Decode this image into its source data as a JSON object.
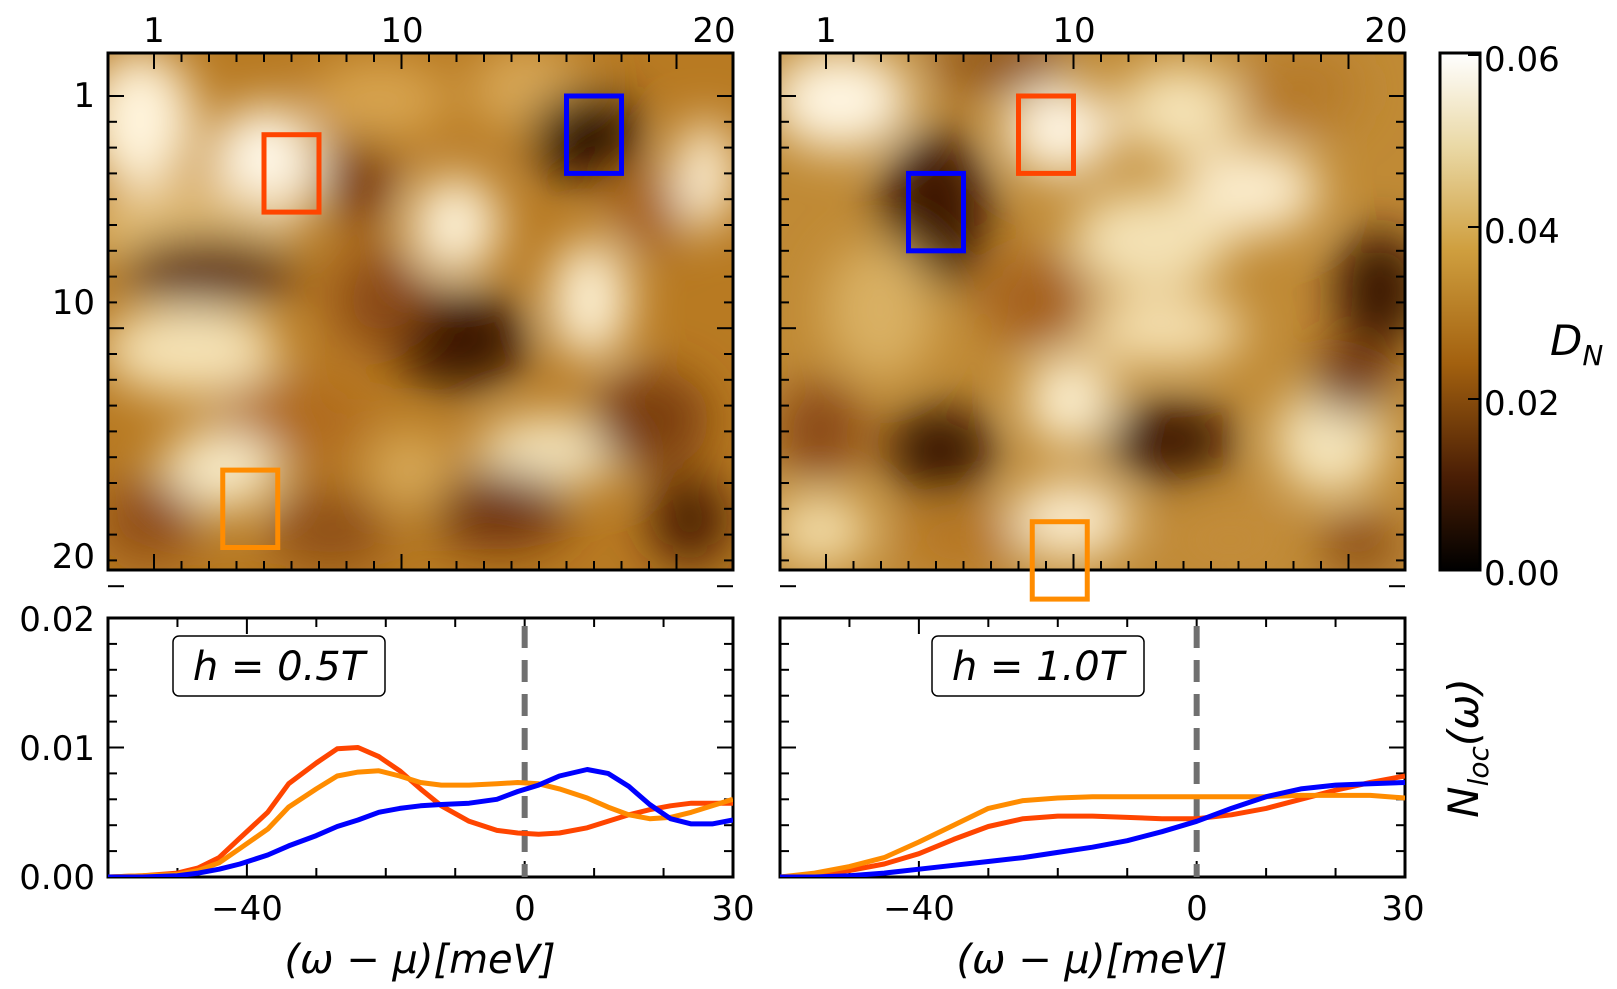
{
  "chart_data": [
    {
      "type": "heatmap",
      "panel": "top-left",
      "x_ticks": [
        "1",
        "10",
        "20"
      ],
      "y_ticks": [
        "1",
        "10",
        "20"
      ],
      "grid": false,
      "value_range": [
        0.0,
        0.06
      ],
      "boxes": [
        {
          "color": "#ff4500",
          "x_range": [
            5,
            7
          ],
          "y_range": [
            2.5,
            5.5
          ]
        },
        {
          "color": "#ff8c00",
          "x_range": [
            3.5,
            5.5
          ],
          "y_range": [
            15.5,
            18.5
          ]
        },
        {
          "color": "#0000ff",
          "x_range": [
            16,
            18
          ],
          "y_range": [
            1,
            4
          ]
        }
      ]
    },
    {
      "type": "heatmap",
      "panel": "top-right",
      "x_ticks": [
        "1",
        "10",
        "20"
      ],
      "grid": false,
      "value_range": [
        0.0,
        0.06
      ],
      "boxes": [
        {
          "color": "#ff4500",
          "x_range": [
            8,
            10
          ],
          "y_range": [
            1,
            4
          ]
        },
        {
          "color": "#0000ff",
          "x_range": [
            4,
            6
          ],
          "y_range": [
            4,
            7
          ]
        },
        {
          "color": "#ff8c00",
          "x_range": [
            8.5,
            10.5
          ],
          "y_range": [
            17.5,
            20.5
          ]
        }
      ]
    },
    {
      "type": "line",
      "panel": "bottom-left",
      "annotation": "h = 0.5T",
      "xlabel": "(ω − μ)[meV]",
      "ylabel": "",
      "xlim": [
        -60,
        30
      ],
      "ylim": [
        0,
        0.02
      ],
      "x_ticks": [
        "−40",
        "0",
        "30"
      ],
      "y_ticks": [
        "0.00",
        "0.01",
        "0.02"
      ],
      "vline_x": 0,
      "series": [
        {
          "color": "#ff4500",
          "x": [
            -60,
            -55,
            -50,
            -47,
            -44,
            -41,
            -37,
            -34,
            -30,
            -27,
            -24,
            -21,
            -18,
            -15,
            -12,
            -8,
            -4,
            -1,
            2,
            5,
            9,
            12,
            15,
            18,
            21,
            24,
            27,
            30
          ],
          "y": [
            0,
            0.0001,
            0.0003,
            0.0007,
            0.0015,
            0.003,
            0.005,
            0.0072,
            0.0088,
            0.0099,
            0.01,
            0.0093,
            0.0082,
            0.0068,
            0.0055,
            0.0043,
            0.0036,
            0.0034,
            0.0033,
            0.0034,
            0.0038,
            0.0043,
            0.0048,
            0.0052,
            0.0055,
            0.0057,
            0.0057,
            0.0057
          ]
        },
        {
          "color": "#ff8c00",
          "x": [
            -60,
            -55,
            -50,
            -47,
            -44,
            -41,
            -37,
            -34,
            -30,
            -27,
            -24,
            -21,
            -18,
            -15,
            -12,
            -8,
            -4,
            -1,
            2,
            5,
            9,
            12,
            15,
            18,
            21,
            24,
            27,
            30
          ],
          "y": [
            0,
            0.0001,
            0.0002,
            0.0005,
            0.0011,
            0.0022,
            0.0037,
            0.0054,
            0.0068,
            0.0078,
            0.0081,
            0.0082,
            0.0078,
            0.0073,
            0.0071,
            0.0071,
            0.0072,
            0.0073,
            0.0072,
            0.0068,
            0.0061,
            0.0054,
            0.0048,
            0.0045,
            0.0046,
            0.005,
            0.0055,
            0.006
          ]
        },
        {
          "color": "#0000ff",
          "x": [
            -60,
            -55,
            -50,
            -47,
            -44,
            -41,
            -37,
            -34,
            -30,
            -27,
            -24,
            -21,
            -18,
            -15,
            -12,
            -8,
            -4,
            -1,
            2,
            5,
            9,
            12,
            15,
            18,
            21,
            24,
            27,
            30
          ],
          "y": [
            0,
            0,
            0.0001,
            0.0003,
            0.0006,
            0.001,
            0.0017,
            0.0024,
            0.0032,
            0.0039,
            0.0044,
            0.005,
            0.0053,
            0.0055,
            0.0056,
            0.0057,
            0.006,
            0.0066,
            0.0071,
            0.0078,
            0.0083,
            0.008,
            0.007,
            0.0056,
            0.0045,
            0.0041,
            0.0041,
            0.0044
          ]
        }
      ]
    },
    {
      "type": "line",
      "panel": "bottom-right",
      "annotation": "h = 1.0T",
      "xlabel": "(ω − μ)[meV]",
      "ylabel": "N_loc(ω)",
      "xlim": [
        -60,
        30
      ],
      "ylim": [
        0,
        0.02
      ],
      "x_ticks": [
        "−40",
        "0",
        "30"
      ],
      "vline_x": 0,
      "series": [
        {
          "color": "#ff4500",
          "x": [
            -60,
            -55,
            -50,
            -45,
            -40,
            -35,
            -30,
            -25,
            -20,
            -15,
            -10,
            -5,
            0,
            5,
            10,
            15,
            20,
            25,
            30
          ],
          "y": [
            0,
            0.0002,
            0.0005,
            0.001,
            0.0018,
            0.0029,
            0.0039,
            0.0045,
            0.0047,
            0.0047,
            0.0046,
            0.0045,
            0.0045,
            0.0048,
            0.0053,
            0.006,
            0.0067,
            0.0073,
            0.0078
          ]
        },
        {
          "color": "#ff8c00",
          "x": [
            -60,
            -55,
            -50,
            -45,
            -40,
            -35,
            -30,
            -25,
            -20,
            -15,
            -10,
            -5,
            0,
            5,
            10,
            15,
            20,
            25,
            30
          ],
          "y": [
            0,
            0.0003,
            0.0008,
            0.0015,
            0.0027,
            0.004,
            0.0053,
            0.0059,
            0.0061,
            0.0062,
            0.0062,
            0.0062,
            0.0062,
            0.0062,
            0.0062,
            0.0063,
            0.0063,
            0.0063,
            0.0061
          ]
        },
        {
          "color": "#0000ff",
          "x": [
            -60,
            -55,
            -50,
            -45,
            -40,
            -35,
            -30,
            -25,
            -20,
            -15,
            -10,
            -5,
            0,
            5,
            10,
            15,
            20,
            25,
            30
          ],
          "y": [
            0,
            0,
            0.0001,
            0.0003,
            0.0006,
            0.0009,
            0.0012,
            0.0015,
            0.0019,
            0.0023,
            0.0028,
            0.0035,
            0.0043,
            0.0053,
            0.0062,
            0.0068,
            0.0071,
            0.0072,
            0.0073
          ]
        }
      ]
    }
  ],
  "colorbar": {
    "label": "D_N",
    "ticks": [
      "0.00",
      "0.02",
      "0.04",
      "0.06"
    ]
  }
}
